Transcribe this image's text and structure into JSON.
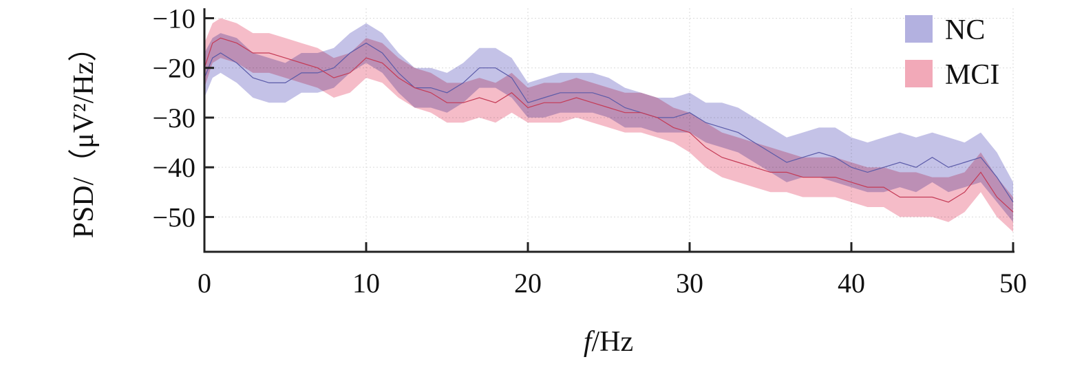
{
  "chart_data": {
    "type": "area",
    "xlabel_italic": "f",
    "xlabel_unit": "/Hz",
    "ylabel": "PSD/（μV²/Hz）",
    "xlim": [
      0,
      50
    ],
    "ylim": [
      -57,
      -8
    ],
    "x_ticks": [
      0,
      10,
      20,
      30,
      40,
      50
    ],
    "x_tick_labels": [
      "0",
      "10",
      "20",
      "30",
      "40",
      "50"
    ],
    "y_ticks": [
      -10,
      -20,
      -30,
      -40,
      -50
    ],
    "y_tick_labels": [
      "−10",
      "−20",
      "−30",
      "−40",
      "−50"
    ],
    "grid": true,
    "legend_position": "top-right",
    "x": [
      0,
      0.5,
      1,
      2,
      3,
      4,
      5,
      6,
      7,
      8,
      9,
      10,
      11,
      12,
      13,
      14,
      15,
      16,
      17,
      18,
      19,
      20,
      21,
      22,
      23,
      24,
      25,
      26,
      27,
      28,
      29,
      30,
      31,
      32,
      33,
      34,
      35,
      36,
      37,
      38,
      39,
      40,
      41,
      42,
      43,
      44,
      45,
      46,
      47,
      48,
      49,
      50
    ],
    "series": [
      {
        "name": "NC",
        "color": "#b3b1e0",
        "line_color": "#5a5aa8",
        "mean": [
          -22,
          -18,
          -17,
          -19,
          -22,
          -23,
          -23,
          -21,
          -21,
          -20,
          -17,
          -15,
          -17,
          -21,
          -24,
          -24,
          -25,
          -23,
          -20,
          -20,
          -22,
          -27,
          -26,
          -25,
          -25,
          -25,
          -26,
          -28,
          -29,
          -30,
          -30,
          -29,
          -31,
          -32,
          -33,
          -35,
          -37,
          -39,
          -38,
          -37,
          -38,
          -40,
          -41,
          -40,
          -39,
          -40,
          -38,
          -40,
          -39,
          -38,
          -42,
          -47
        ],
        "upper": [
          -17,
          -14,
          -13,
          -14,
          -17,
          -18,
          -19,
          -17,
          -17,
          -16,
          -13,
          -11,
          -13,
          -17,
          -20,
          -20,
          -21,
          -19,
          -16,
          -16,
          -18,
          -23,
          -22,
          -21,
          -21,
          -21,
          -22,
          -24,
          -25,
          -26,
          -26,
          -25,
          -27,
          -27,
          -28,
          -30,
          -32,
          -34,
          -33,
          -32,
          -32,
          -34,
          -35,
          -34,
          -33,
          -34,
          -33,
          -34,
          -35,
          -33,
          -37,
          -43
        ],
        "lower": [
          -26,
          -22,
          -21,
          -23,
          -26,
          -27,
          -27,
          -25,
          -25,
          -24,
          -21,
          -19,
          -21,
          -25,
          -28,
          -28,
          -29,
          -27,
          -24,
          -24,
          -26,
          -30,
          -30,
          -29,
          -29,
          -29,
          -30,
          -32,
          -32,
          -33,
          -33,
          -33,
          -35,
          -36,
          -37,
          -39,
          -41,
          -43,
          -42,
          -42,
          -43,
          -44,
          -45,
          -45,
          -44,
          -45,
          -43,
          -45,
          -44,
          -43,
          -47,
          -51
        ]
      },
      {
        "name": "MCI",
        "color": "#f2a9b8",
        "line_color": "#c43a55",
        "mean": [
          -20,
          -15,
          -14,
          -15,
          -17,
          -17,
          -18,
          -19,
          -20,
          -22,
          -21,
          -18,
          -19,
          -22,
          -24,
          -25,
          -27,
          -27,
          -26,
          -27,
          -25,
          -28,
          -27,
          -27,
          -26,
          -27,
          -28,
          -29,
          -29,
          -30,
          -32,
          -33,
          -36,
          -38,
          -39,
          -40,
          -41,
          -41,
          -42,
          -42,
          -42,
          -43,
          -44,
          -44,
          -46,
          -46,
          -46,
          -47,
          -45,
          -41,
          -46,
          -49
        ],
        "upper": [
          -15,
          -11,
          -10,
          -11,
          -13,
          -13,
          -14,
          -15,
          -16,
          -18,
          -17,
          -14,
          -15,
          -18,
          -20,
          -21,
          -23,
          -23,
          -22,
          -23,
          -21,
          -24,
          -23,
          -23,
          -22,
          -23,
          -24,
          -25,
          -25,
          -26,
          -28,
          -29,
          -31,
          -33,
          -34,
          -35,
          -36,
          -37,
          -38,
          -38,
          -38,
          -39,
          -40,
          -40,
          -41,
          -41,
          -42,
          -42,
          -41,
          -37,
          -42,
          -46
        ],
        "lower": [
          -24,
          -19,
          -18,
          -19,
          -21,
          -21,
          -22,
          -23,
          -24,
          -26,
          -25,
          -22,
          -23,
          -26,
          -28,
          -29,
          -31,
          -31,
          -30,
          -31,
          -29,
          -31,
          -31,
          -31,
          -30,
          -31,
          -32,
          -33,
          -33,
          -34,
          -35,
          -37,
          -40,
          -42,
          -43,
          -44,
          -45,
          -45,
          -46,
          -46,
          -46,
          -47,
          -48,
          -48,
          -50,
          -50,
          -50,
          -51,
          -49,
          -45,
          -50,
          -53
        ]
      }
    ]
  }
}
